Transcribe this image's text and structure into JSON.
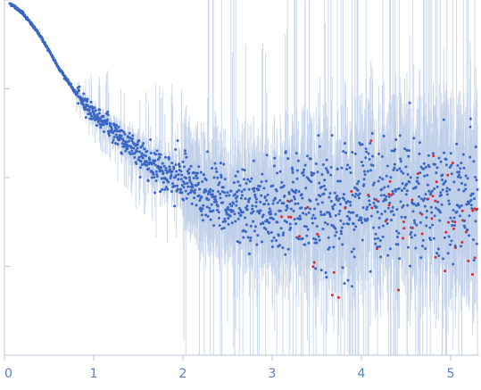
{
  "chart_data": {
    "type": "scatter",
    "title": "",
    "xlabel": "",
    "ylabel": "",
    "scale_y": "log",
    "xlim": [
      0,
      5.32
    ],
    "ylim_decades": [
      0,
      4
    ],
    "grid": false,
    "legend": "none",
    "x_ticks": [
      {
        "value": 0,
        "label": "0"
      },
      {
        "value": 1,
        "label": "1"
      },
      {
        "value": 2,
        "label": "2"
      },
      {
        "value": 3,
        "label": "3"
      },
      {
        "value": 4,
        "label": "4"
      },
      {
        "value": 5,
        "label": "5"
      }
    ],
    "y_ticks_decades": [
      1,
      2,
      3,
      4
    ],
    "series": [
      {
        "role": "measured",
        "color": "#3a66c4",
        "errorbar_color": "#bccde8",
        "curve_anchors": [
          [
            0.05,
            3.97
          ],
          [
            0.2,
            3.86
          ],
          [
            0.4,
            3.6
          ],
          [
            0.6,
            3.25
          ],
          [
            0.8,
            2.95
          ],
          [
            1.0,
            2.72
          ],
          [
            1.2,
            2.55
          ],
          [
            1.4,
            2.36
          ],
          [
            1.6,
            2.2
          ],
          [
            1.8,
            2.07
          ],
          [
            2.0,
            1.93
          ],
          [
            2.3,
            1.78
          ],
          [
            2.6,
            1.68
          ],
          [
            3.0,
            1.66
          ],
          [
            3.5,
            1.68
          ],
          [
            4.0,
            1.72
          ],
          [
            4.5,
            1.74
          ],
          [
            5.0,
            1.78
          ],
          [
            5.32,
            1.8
          ]
        ]
      },
      {
        "role": "flagged",
        "color": "#e0282f",
        "x_range": [
          3.1,
          5.32
        ]
      }
    ]
  }
}
